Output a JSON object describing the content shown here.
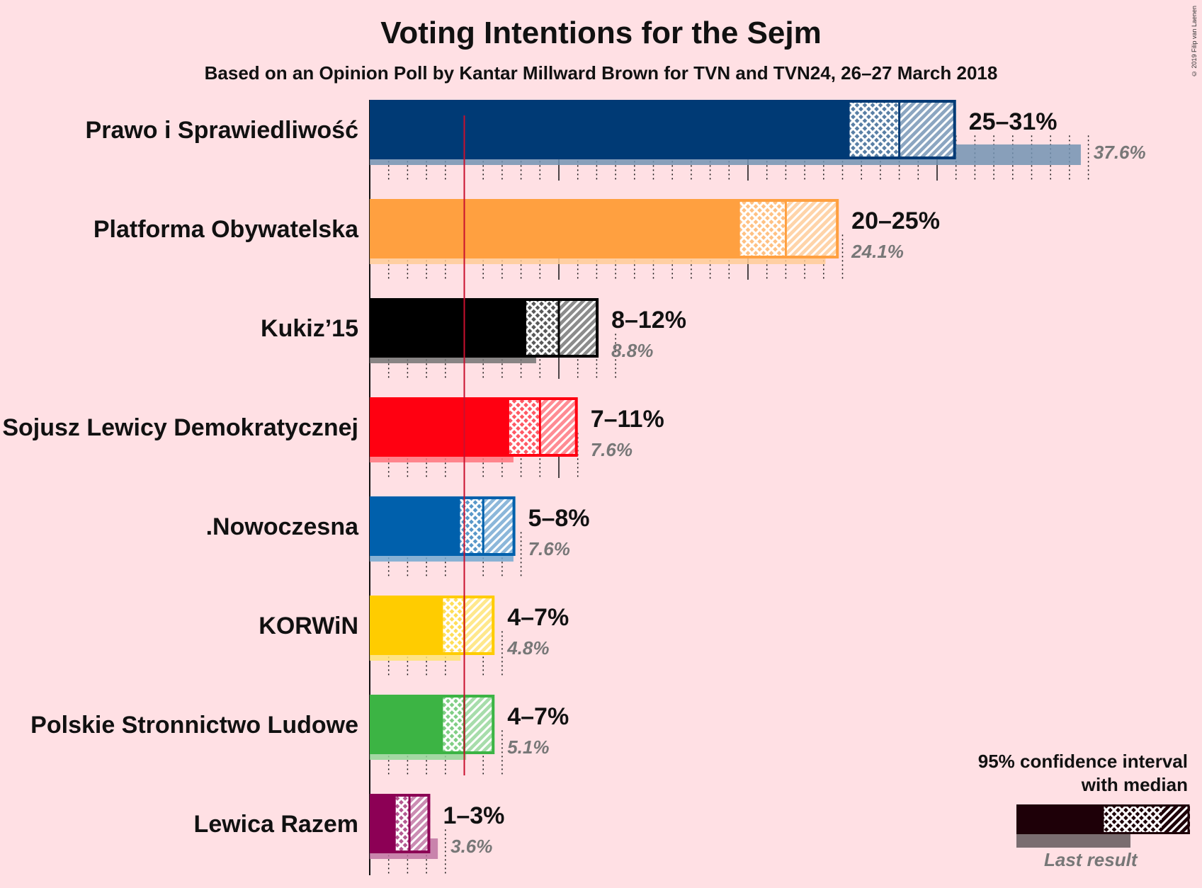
{
  "title": "Voting Intentions for the Sejm",
  "subtitle": "Based on an Opinion Poll by Kantar Millward Brown for TVN and TVN24, 26–27 March 2018",
  "copyright": "© 2019 Filip van Laenen",
  "legend": {
    "title_line1": "95% confidence interval",
    "title_line2": "with median",
    "last_result": "Last result"
  },
  "chart_data": {
    "type": "bar",
    "orientation": "horizontal",
    "title": "Voting Intentions for the Sejm",
    "threshold": 5,
    "xlim": [
      0,
      40
    ],
    "categories": [
      "Prawo i Sprawiedliwość",
      "Platforma Obywatelska",
      "Kukiz’15",
      "Sojusz Lewicy Demokratycznej",
      ".Nowoczesna",
      "KORWiN",
      "Polskie Stronnictwo Ludowe",
      "Lewica Razem"
    ],
    "parties": [
      {
        "name": "Prawo i Sprawiedliwość",
        "color": "#003A75",
        "low": 25.3,
        "median": 28.0,
        "high": 31.0,
        "range_label": "25–31%",
        "last": 37.6,
        "last_label": "37.6%"
      },
      {
        "name": "Platforma Obywatelska",
        "color": "#FFA040",
        "low": 19.5,
        "median": 22.0,
        "high": 24.8,
        "range_label": "20–25%",
        "last": 24.1,
        "last_label": "24.1%"
      },
      {
        "name": "Kukiz’15",
        "color": "#000000",
        "low": 8.2,
        "median": 10.0,
        "high": 12.1,
        "range_label": "8–12%",
        "last": 8.8,
        "last_label": "8.8%"
      },
      {
        "name": "Sojusz Lewicy Demokratycznej",
        "color": "#FF0011",
        "low": 7.3,
        "median": 9.0,
        "high": 11.0,
        "range_label": "7–11%",
        "last": 7.6,
        "last_label": "7.6%"
      },
      {
        "name": ".Nowoczesna",
        "color": "#0060AC",
        "low": 4.7,
        "median": 6.0,
        "high": 7.7,
        "range_label": "5–8%",
        "last": 7.6,
        "last_label": "7.6%"
      },
      {
        "name": "KORWiN",
        "color": "#FFCC00",
        "low": 3.8,
        "median": 5.0,
        "high": 6.6,
        "range_label": "4–7%",
        "last": 4.8,
        "last_label": "4.8%"
      },
      {
        "name": "Polskie Stronnictwo Ludowe",
        "color": "#3CB444",
        "low": 3.8,
        "median": 5.0,
        "high": 6.6,
        "range_label": "4–7%",
        "last": 5.1,
        "last_label": "5.1%"
      },
      {
        "name": "Lewica Razem",
        "color": "#8C0055",
        "low": 1.3,
        "median": 2.1,
        "high": 3.2,
        "range_label": "1–3%",
        "last": 3.6,
        "last_label": "3.6%"
      }
    ]
  }
}
